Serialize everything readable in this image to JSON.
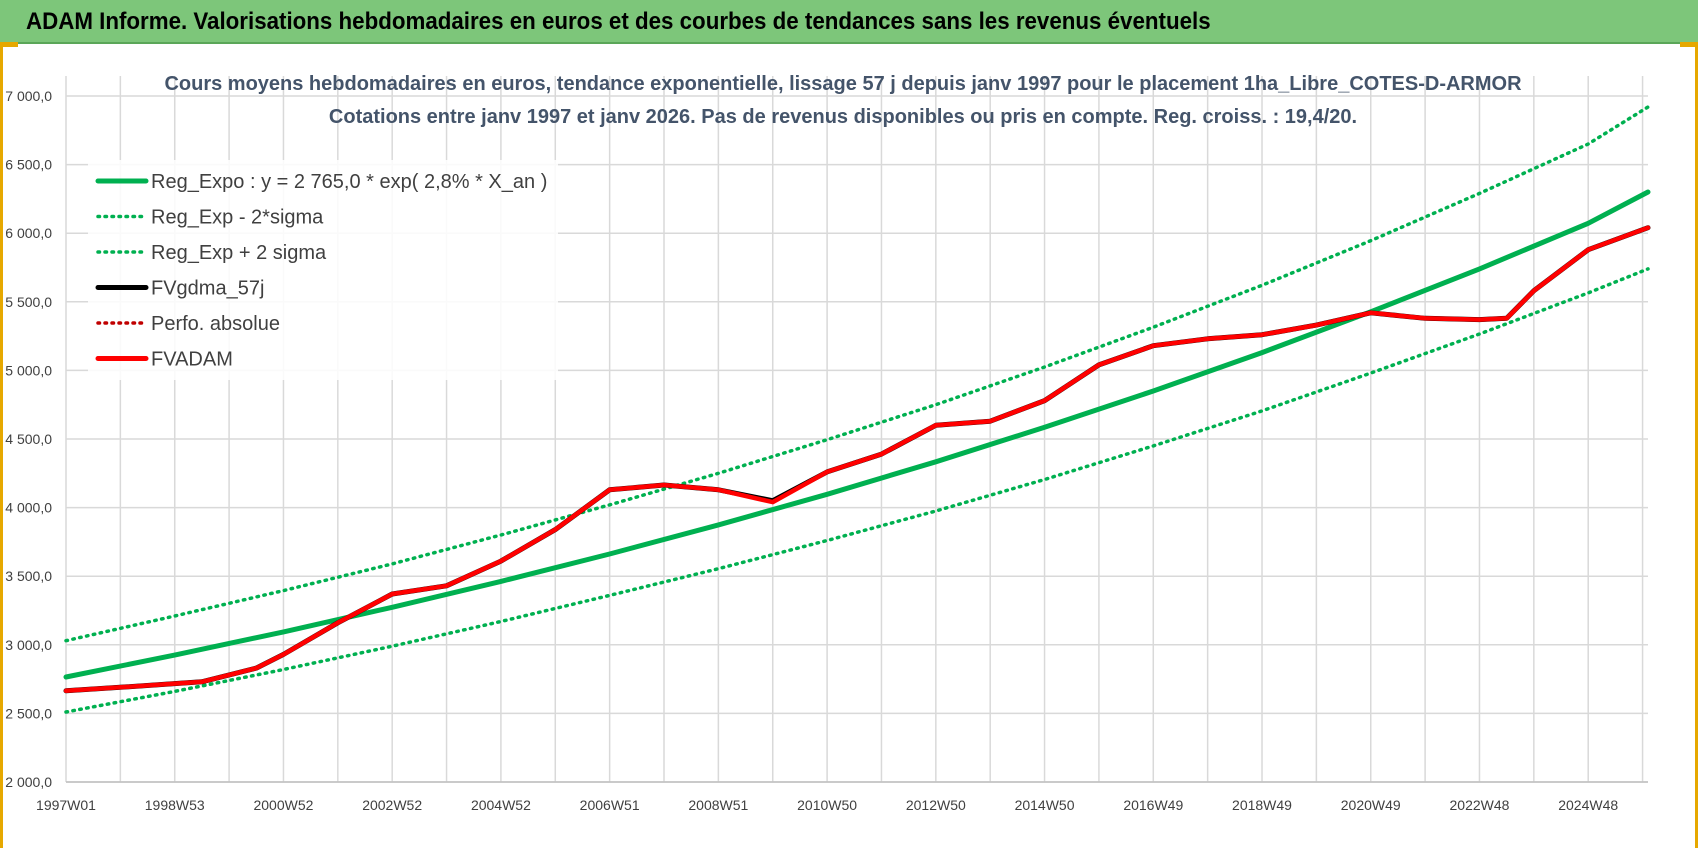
{
  "header": {
    "banner_title": "ADAM Informe. Valorisations hebdomadaires en euros et des courbes de tendances sans les revenus éventuels"
  },
  "colors": {
    "banner": "#7dc67a",
    "frame": "#e6a800",
    "reg_green": "#00b050",
    "fvadam_red": "#ff0000",
    "fvgdma_black": "#000000",
    "perfo_red": "#c00000",
    "grid": "#d9d9d9"
  },
  "chart_data": {
    "type": "line",
    "title_line1": "Cours moyens hebdomadaires en euros, tendance exponentielle, lissage 57 j depuis janv 1997 pour le placement 1ha_Libre_COTES-D-ARMOR",
    "title_line2": "Cotations entre janv 1997 et janv 2026. Pas de revenus disponibles ou pris en compte. Reg. croiss. : 19,4/20.",
    "x_tick_labels": [
      "1997W01",
      "1998W53",
      "2000W52",
      "2002W52",
      "2004W52",
      "2006W51",
      "2008W51",
      "2010W50",
      "2012W50",
      "2014W50",
      "2016W49",
      "2018W49",
      "2020W49",
      "2022W48",
      "2024W48"
    ],
    "x_tick_years": [
      1997,
      1999,
      2001,
      2003,
      2005,
      2007,
      2009,
      2011,
      2013,
      2015,
      2017,
      2019,
      2021,
      2023,
      2025
    ],
    "x_range": [
      1997,
      2026.1
    ],
    "y_tick_labels": [
      "2 000,0",
      "2 500,0",
      "3 000,0",
      "3 500,0",
      "4 000,0",
      "4 500,0",
      "5 000,0",
      "5 500,0",
      "6 000,0",
      "6 500,0",
      "7 000,0"
    ],
    "ylim": [
      2000,
      7000
    ],
    "grid": true,
    "legend_position": "top-left",
    "legend": [
      {
        "label": "Reg_Expo : y = 2 765,0 * exp( 2,8% *  X_an )",
        "style": "solid",
        "color": "#00b050"
      },
      {
        "label": "Reg_Exp - 2*sigma",
        "style": "dotted",
        "color": "#00b050"
      },
      {
        "label": "Reg_Exp + 2 sigma",
        "style": "dotted",
        "color": "#00b050"
      },
      {
        "label": "FVgdma_57j",
        "style": "solid",
        "color": "#000000"
      },
      {
        "label": "Perfo. absolue",
        "style": "dotted",
        "color": "#c00000"
      },
      {
        "label": "FVADAM",
        "style": "solid",
        "color": "#ff0000"
      }
    ],
    "series": [
      {
        "name": "Reg_Expo : y = 2 765,0 * exp( 2,8% *  X_an )",
        "x": [
          1997,
          1999,
          2001,
          2003,
          2005,
          2007,
          2009,
          2011,
          2013,
          2015,
          2017,
          2019,
          2021,
          2023,
          2025,
          2026.1
        ],
        "values": [
          2765,
          2925,
          3094,
          3273,
          3462,
          3662,
          3874,
          4097,
          4334,
          4585,
          4850,
          5130,
          5427,
          5740,
          6072,
          6300
        ]
      },
      {
        "name": "Reg_Exp - 2*sigma",
        "x": [
          1997,
          1999,
          2001,
          2003,
          2005,
          2007,
          2009,
          2011,
          2013,
          2015,
          2017,
          2019,
          2021,
          2023,
          2025,
          2026.1
        ],
        "values": [
          2510,
          2660,
          2820,
          2990,
          3170,
          3360,
          3555,
          3760,
          3975,
          4205,
          4450,
          4705,
          4980,
          5265,
          5565,
          5740
        ]
      },
      {
        "name": "Reg_Exp + 2 sigma",
        "x": [
          1997,
          1999,
          2001,
          2003,
          2005,
          2007,
          2009,
          2011,
          2013,
          2015,
          2017,
          2019,
          2021,
          2023,
          2025,
          2026.1
        ],
        "values": [
          3030,
          3210,
          3395,
          3590,
          3800,
          4020,
          4250,
          4495,
          4750,
          5025,
          5315,
          5620,
          5945,
          6290,
          6650,
          6920
        ]
      },
      {
        "name": "FVgdma_57j",
        "x": [
          1997,
          1998,
          1999.5,
          2000.5,
          2001,
          2002,
          2003,
          2004,
          2005,
          2006,
          2007,
          2008,
          2009,
          2010,
          2011,
          2012,
          2013,
          2014,
          2015,
          2016,
          2017,
          2018,
          2019,
          2020,
          2021,
          2022,
          2023,
          2023.5,
          2024,
          2025,
          2026.1
        ],
        "values": [
          2665,
          2690,
          2730,
          2830,
          2930,
          3160,
          3370,
          3430,
          3610,
          3840,
          4130,
          4165,
          4130,
          4050,
          4260,
          4390,
          4600,
          4630,
          4780,
          5040,
          5180,
          5230,
          5260,
          5330,
          5420,
          5380,
          5370,
          5380,
          5580,
          5880,
          6040
        ]
      },
      {
        "name": "FVADAM",
        "x": [
          1997,
          1998,
          1999.5,
          2000.5,
          2001,
          2002,
          2003,
          2004,
          2005,
          2006,
          2007,
          2008,
          2009,
          2010,
          2011,
          2012,
          2013,
          2014,
          2015,
          2016,
          2017,
          2018,
          2019,
          2020,
          2021,
          2022,
          2023,
          2023.5,
          2024,
          2025,
          2026.1
        ],
        "values": [
          2665,
          2690,
          2730,
          2830,
          2930,
          3160,
          3370,
          3430,
          3610,
          3840,
          4130,
          4165,
          4130,
          4040,
          4260,
          4390,
          4600,
          4630,
          4780,
          5040,
          5180,
          5230,
          5260,
          5330,
          5420,
          5380,
          5370,
          5380,
          5580,
          5880,
          6040
        ]
      }
    ]
  }
}
